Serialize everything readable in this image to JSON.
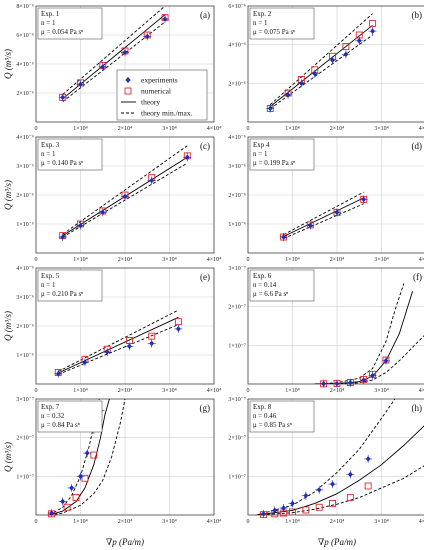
{
  "figure": {
    "y_axis_label": "Q (m³/s)",
    "x_axis_label": "∇p (Pa/m)",
    "legend": {
      "experiments": "experiments",
      "numerical": "numerical",
      "theory": "theory",
      "theory_minmax": "theory min./max."
    },
    "colors": {
      "experiment": "#1f2fb8",
      "numerical": "#e0282a",
      "theory": "#000000",
      "grid": "#cfcfcf"
    }
  },
  "chart_data": [
    {
      "type": "scatter",
      "panel_label": "(a)",
      "info": [
        "Exp. 1",
        "n = 1",
        "μ = 0.054 Pa sⁿ"
      ],
      "xlim": [
        0,
        40000
      ],
      "ylim": [
        0,
        8e-06
      ],
      "x_ticks": [
        "0",
        "1×10⁴",
        "2×10⁴",
        "3×10⁴",
        "4×10⁴"
      ],
      "y_ticks": [
        "2×10⁻⁶",
        "4×10⁻⁶",
        "6×10⁻⁶",
        "8×10⁻⁶"
      ],
      "experiments": {
        "x": [
          6000,
          10000,
          15000,
          20000,
          25000,
          29000
        ],
        "y": [
          1.7e-06,
          2.6e-06,
          3.8e-06,
          4.8e-06,
          5.9e-06,
          7.1e-06
        ]
      },
      "numerical": {
        "x": [
          6000,
          10000,
          15000,
          20000,
          25000,
          29000
        ],
        "y": [
          1.7e-06,
          2.7e-06,
          3.9e-06,
          4.9e-06,
          6e-06,
          7.2e-06
        ]
      },
      "theory": {
        "x": [
          6000,
          29000
        ],
        "y": [
          1.6e-06,
          7.4e-06
        ]
      },
      "theory_min": {
        "x": [
          6000,
          29000
        ],
        "y": [
          1.4e-06,
          6.9e-06
        ]
      },
      "theory_max": {
        "x": [
          6000,
          29000
        ],
        "y": [
          1.9e-06,
          8e-06
        ]
      }
    },
    {
      "type": "scatter",
      "panel_label": "(b)",
      "info": [
        "Exp. 2",
        "n = 1",
        "μ = 0.075 Pa sⁿ"
      ],
      "xlim": [
        0,
        40000
      ],
      "ylim": [
        0,
        6e-06
      ],
      "x_ticks": [
        "0",
        "1×10⁴",
        "2×10⁴",
        "3×10⁴",
        "4×10⁴"
      ],
      "y_ticks": [
        "2×10⁻⁶",
        "4×10⁻⁶",
        "6×10⁻⁶"
      ],
      "experiments": {
        "x": [
          5000,
          9000,
          12000,
          15000,
          19000,
          22000,
          25000,
          28000
        ],
        "y": [
          7e-07,
          1.4e-06,
          2e-06,
          2.5e-06,
          3.2e-06,
          3.5e-06,
          4.2e-06,
          4.7e-06
        ]
      },
      "numerical": {
        "x": [
          5000,
          9000,
          12000,
          15000,
          19000,
          22000,
          25000,
          28000
        ],
        "y": [
          7e-07,
          1.5e-06,
          2.2e-06,
          2.7e-06,
          3.4e-06,
          3.9e-06,
          4.5e-06,
          5.1e-06
        ]
      },
      "theory": {
        "x": [
          5000,
          28000
        ],
        "y": [
          8e-07,
          5e-06
        ]
      },
      "theory_min": {
        "x": [
          5000,
          28000
        ],
        "y": [
          7e-07,
          4.5e-06
        ]
      },
      "theory_max": {
        "x": [
          5000,
          28000
        ],
        "y": [
          9e-07,
          5.6e-06
        ]
      }
    },
    {
      "type": "scatter",
      "panel_label": "(c)",
      "info": [
        "Exp. 3",
        "n = 1",
        "μ = 0.140 Pa sⁿ"
      ],
      "xlim": [
        0,
        40000
      ],
      "ylim": [
        0,
        4e-06
      ],
      "x_ticks": [
        "0",
        "1×10⁴",
        "2×10⁴",
        "3×10⁴",
        "4×10⁴"
      ],
      "y_ticks": [
        "1×10⁻⁶",
        "2×10⁻⁶",
        "3×10⁻⁶",
        "4×10⁻⁶"
      ],
      "experiments": {
        "x": [
          6000,
          10000,
          15000,
          20000,
          26000,
          34000
        ],
        "y": [
          5.5e-07,
          9.5e-07,
          1.4e-06,
          1.95e-06,
          2.5e-06,
          3.3e-06
        ]
      },
      "numerical": {
        "x": [
          6000,
          10000,
          15000,
          20000,
          26000,
          34000
        ],
        "y": [
          6e-07,
          1e-06,
          1.45e-06,
          2e-06,
          2.6e-06,
          3.35e-06
        ]
      },
      "theory": {
        "x": [
          6000,
          34000
        ],
        "y": [
          6e-07,
          3.3e-06
        ]
      },
      "theory_min": {
        "x": [
          6000,
          34000
        ],
        "y": [
          5.5e-07,
          3.1e-06
        ]
      },
      "theory_max": {
        "x": [
          6000,
          34000
        ],
        "y": [
          6.5e-07,
          3.7e-06
        ]
      }
    },
    {
      "type": "scatter",
      "panel_label": "(d)",
      "info": [
        "Exp 4",
        "n = 1",
        "μ = 0.199 Pa sⁿ"
      ],
      "xlim": [
        0,
        40000
      ],
      "ylim": [
        0,
        4e-06
      ],
      "x_ticks": [
        "0",
        "1×10⁴",
        "2×10⁴",
        "3×10⁴",
        "4×10⁴"
      ],
      "y_ticks": [
        "1×10⁻⁶",
        "2×10⁻⁶",
        "3×10⁻⁶",
        "4×10⁻⁶"
      ],
      "experiments": {
        "x": [
          8000,
          14000,
          20000,
          26000
        ],
        "y": [
          5.5e-07,
          9.5e-07,
          1.4e-06,
          1.85e-06
        ]
      },
      "numerical": {
        "x": [
          8000,
          14000,
          20000,
          26000
        ],
        "y": [
          5.5e-07,
          9.7e-07,
          1.4e-06,
          1.85e-06
        ]
      },
      "theory": {
        "x": [
          8000,
          26000
        ],
        "y": [
          5.7e-07,
          1.9e-06
        ]
      },
      "theory_min": {
        "x": [
          8000,
          26000
        ],
        "y": [
          5e-07,
          1.7e-06
        ]
      },
      "theory_max": {
        "x": [
          8000,
          26000
        ],
        "y": [
          6.3e-07,
          2.1e-06
        ]
      }
    },
    {
      "type": "scatter",
      "panel_label": "(e)",
      "info": [
        "Exp. 5",
        "n = 1",
        "μ = 0.210 Pa sⁿ"
      ],
      "xlim": [
        0,
        40000
      ],
      "ylim": [
        0,
        4e-06
      ],
      "x_ticks": [
        "0",
        "1×10⁴",
        "2×10⁴",
        "3×10⁴",
        "4×10⁴"
      ],
      "y_ticks": [
        "1×10⁻⁶",
        "2×10⁻⁶",
        "3×10⁻⁶",
        "4×10⁻⁶"
      ],
      "experiments": {
        "x": [
          5000,
          11000,
          16000,
          21000,
          26000,
          32000
        ],
        "y": [
          3.5e-07,
          7.5e-07,
          1.1e-06,
          1.3e-06,
          1.4e-06,
          1.9e-06
        ]
      },
      "numerical": {
        "x": [
          5000,
          11000,
          16000,
          21000,
          26000,
          32000
        ],
        "y": [
          4e-07,
          8.5e-07,
          1.2e-06,
          1.5e-06,
          1.65e-06,
          2.15e-06
        ]
      },
      "theory": {
        "x": [
          5000,
          32000
        ],
        "y": [
          3.8e-07,
          2.3e-06
        ]
      },
      "theory_min": {
        "x": [
          5000,
          32000
        ],
        "y": [
          3.3e-07,
          2.05e-06
        ]
      },
      "theory_max": {
        "x": [
          5000,
          32000
        ],
        "y": [
          4.3e-07,
          2.55e-06
        ]
      }
    },
    {
      "type": "scatter",
      "panel_label": "(f)",
      "info": [
        "Exp. 6",
        "n = 0.14",
        "μ = 6.6 Pa sⁿ"
      ],
      "xlim": [
        0,
        40000
      ],
      "ylim": [
        0,
        3e-07
      ],
      "x_ticks": [
        "0",
        "1×10⁴",
        "2×10⁴",
        "3×10⁴",
        "4×10⁴"
      ],
      "y_ticks": [
        "1×10⁻⁷",
        "2×10⁻⁷",
        "3×10⁻⁷"
      ],
      "experiments": {
        "x": [
          17000,
          20000,
          23000,
          26000,
          28000,
          31000
        ],
        "y": [
          5e-10,
          1e-09,
          3e-09,
          1e-08,
          2.2e-08,
          6e-08
        ]
      },
      "numerical": {
        "x": [
          17000,
          20000,
          23000,
          26000,
          28000,
          31000
        ],
        "y": [
          5e-10,
          1.5e-09,
          4e-09,
          1.2e-08,
          2.5e-08,
          6.2e-08
        ]
      },
      "theory": {
        "x": [
          15000,
          20000,
          25000,
          28000,
          31000,
          34000,
          37000
        ],
        "y": [
          0,
          1e-09,
          6e-09,
          2e-08,
          6e-08,
          1.3e-07,
          2.4e-07
        ]
      },
      "theory_min": {
        "x": [
          15000,
          20000,
          25000,
          28000,
          31000,
          34000,
          37000,
          40000
        ],
        "y": [
          0,
          5e-10,
          3e-09,
          1e-08,
          3e-08,
          6e-08,
          9.5e-08,
          1.3e-07
        ]
      },
      "theory_max": {
        "x": [
          15000,
          20000,
          25000,
          28000,
          31000,
          33000,
          35000
        ],
        "y": [
          0,
          3e-09,
          1.5e-08,
          4e-08,
          1.1e-07,
          1.9e-07,
          2.6e-07
        ]
      }
    },
    {
      "type": "scatter",
      "panel_label": "(g)",
      "info": [
        "Exp. 7",
        "n = 0.32",
        "μ = 0.84 Pa sⁿ"
      ],
      "xlim": [
        0,
        40000
      ],
      "ylim": [
        0,
        3e-07
      ],
      "x_ticks": [
        "0",
        "1×10⁴",
        "2×10⁴",
        "3×10⁴",
        "4×10⁴"
      ],
      "y_ticks": [
        "1×10⁻⁷",
        "2×10⁻⁷",
        "3×10⁻⁷"
      ],
      "experiments": {
        "x": [
          3500,
          6000,
          8000,
          10000,
          11500,
          13000,
          14500
        ],
        "y": [
          5e-09,
          3.5e-08,
          7e-08,
          1e-07,
          1.6e-07,
          2.2e-07,
          2.7e-07
        ]
      },
      "numerical": {
        "x": [
          3500,
          7000,
          9000,
          11000,
          13000
        ],
        "y": [
          3e-09,
          2e-08,
          4.5e-08,
          9.5e-08,
          1.55e-07
        ]
      },
      "theory": {
        "x": [
          3000,
          6000,
          9000,
          11000,
          13000,
          14500,
          15500,
          16500
        ],
        "y": [
          0,
          1e-08,
          3.5e-08,
          7e-08,
          1.3e-07,
          2e-07,
          2.6e-07,
          3e-07
        ]
      },
      "theory_min": {
        "x": [
          3000,
          6000,
          10000,
          13000,
          15000,
          17000,
          19000,
          20000
        ],
        "y": [
          0,
          5e-09,
          2.5e-08,
          5.5e-08,
          9e-08,
          1.5e-07,
          2.4e-07,
          3e-07
        ]
      },
      "theory_max": {
        "x": [
          3000,
          6000,
          8000,
          10000,
          12000,
          13500,
          14200
        ],
        "y": [
          0,
          2e-08,
          5e-08,
          1e-07,
          1.8e-07,
          2.6e-07,
          3e-07
        ]
      }
    },
    {
      "type": "scatter",
      "panel_label": "(h)",
      "info": [
        "Exp. 8",
        "n = 0.46",
        "μ = 0.85 Pa sⁿ"
      ],
      "xlim": [
        0,
        40000
      ],
      "ylim": [
        0,
        3e-07
      ],
      "x_ticks": [
        "0",
        "1×10⁴",
        "2×10⁴",
        "3×10⁴",
        "4×10⁴"
      ],
      "y_ticks": [
        "1×10⁻⁷",
        "2×10⁻⁷",
        "3×10⁻⁷"
      ],
      "experiments": {
        "x": [
          3500,
          6000,
          8000,
          10000,
          13000,
          16000,
          19000,
          23000,
          27000
        ],
        "y": [
          3e-09,
          1.2e-08,
          1.8e-08,
          3e-08,
          5e-08,
          6.5e-08,
          8e-08,
          1.05e-07,
          1.45e-07
        ]
      },
      "numerical": {
        "x": [
          3500,
          6000,
          8000,
          10000,
          13000,
          16000,
          19000,
          23000,
          27000
        ],
        "y": [
          1e-09,
          3e-09,
          5e-09,
          8e-09,
          1.3e-08,
          2e-08,
          3e-08,
          4.5e-08,
          7.5e-08
        ]
      },
      "theory": {
        "x": [
          2000,
          10000,
          15000,
          20000,
          25000,
          30000,
          35000,
          40000
        ],
        "y": [
          0,
          1.2e-08,
          3e-08,
          5.5e-08,
          9e-08,
          1.3e-07,
          1.8e-07,
          2.35e-07
        ]
      },
      "theory_min": {
        "x": [
          2000,
          10000,
          15000,
          20000,
          25000,
          30000,
          35000,
          40000
        ],
        "y": [
          0,
          6e-09,
          1.5e-08,
          2.8e-08,
          4.5e-08,
          7e-08,
          9.5e-08,
          1.3e-07
        ]
      },
      "theory_max": {
        "x": [
          2000,
          10000,
          15000,
          20000,
          25000,
          30000,
          33000
        ],
        "y": [
          0,
          2.5e-08,
          6e-08,
          1.1e-07,
          1.7e-07,
          2.5e-07,
          3e-07
        ]
      }
    }
  ]
}
